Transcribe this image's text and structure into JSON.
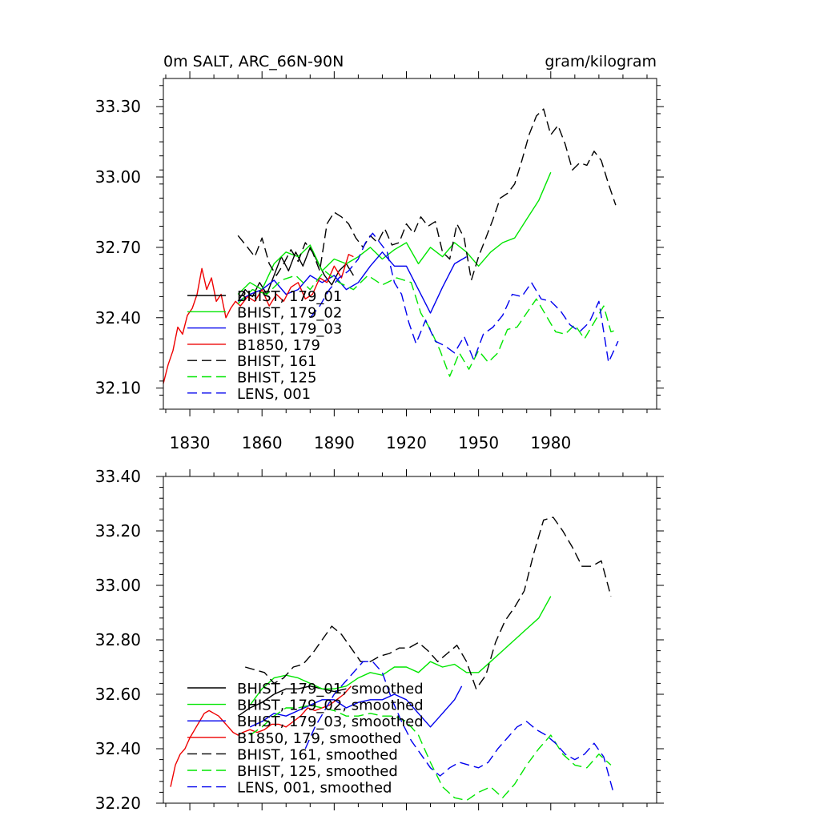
{
  "chart_data": [
    {
      "type": "line",
      "panel": "top",
      "title": "0m SALT, ARC_66N-90N",
      "units": "gram/kilogram",
      "xlim": [
        1819,
        2024
      ],
      "ylim": [
        32.01,
        33.42
      ],
      "x_ticks": [
        1830,
        1860,
        1890,
        1920,
        1950,
        1980
      ],
      "x_tick_labels": [
        "1830",
        "1860",
        "1890",
        "1920",
        "1950",
        "1980"
      ],
      "y_ticks": [
        32.1,
        32.4,
        32.7,
        33.0,
        33.3
      ],
      "y_tick_labels": [
        "32.10",
        "32.40",
        "32.70",
        "33.00",
        "33.30"
      ],
      "legend_position": "lower-left",
      "series": [
        {
          "name": "BHIST, 179_01",
          "color": "#000000",
          "dash": "solid",
          "x": [
            1850,
            1853,
            1856,
            1859,
            1862,
            1865,
            1868,
            1871,
            1874,
            1877,
            1880,
            1883,
            1886,
            1889,
            1892,
            1895,
            1898
          ],
          "y": [
            32.47,
            32.52,
            32.49,
            32.55,
            32.5,
            32.58,
            32.66,
            32.6,
            32.68,
            32.62,
            32.7,
            32.64,
            32.58,
            32.54,
            32.6,
            32.63,
            32.58
          ]
        },
        {
          "name": "BHIST, 179_02",
          "color": "#00e600",
          "dash": "solid",
          "x": [
            1850,
            1855,
            1860,
            1865,
            1870,
            1875,
            1880,
            1885,
            1890,
            1895,
            1900,
            1905,
            1910,
            1915,
            1920,
            1925,
            1930,
            1935,
            1940,
            1945,
            1950,
            1955,
            1960,
            1965,
            1970,
            1975,
            1980
          ],
          "y": [
            32.5,
            32.55,
            32.52,
            32.63,
            32.68,
            32.66,
            32.71,
            32.6,
            32.65,
            32.63,
            32.66,
            32.7,
            32.65,
            32.69,
            32.72,
            32.63,
            32.7,
            32.66,
            32.72,
            32.68,
            32.62,
            32.68,
            32.72,
            32.74,
            32.82,
            32.9,
            33.02
          ]
        },
        {
          "name": "BHIST, 179_03",
          "color": "#0000ee",
          "dash": "solid",
          "x": [
            1850,
            1855,
            1860,
            1865,
            1870,
            1875,
            1880,
            1885,
            1890,
            1895,
            1900,
            1905,
            1910,
            1915,
            1920,
            1925,
            1930,
            1935,
            1940,
            1945
          ],
          "y": [
            32.47,
            32.5,
            32.52,
            32.56,
            32.5,
            32.52,
            32.58,
            32.55,
            32.58,
            32.52,
            32.55,
            32.62,
            32.68,
            32.62,
            32.62,
            32.52,
            32.42,
            32.53,
            32.63,
            32.66
          ]
        },
        {
          "name": "B1850, 179",
          "color": "#ee0000",
          "dash": "solid",
          "x": [
            1819,
            1821,
            1823,
            1825,
            1827,
            1829,
            1831,
            1833,
            1835,
            1837,
            1839,
            1841,
            1843,
            1845,
            1847,
            1849,
            1851,
            1854,
            1857,
            1860,
            1863,
            1866,
            1869,
            1872,
            1875,
            1878,
            1881,
            1884,
            1887,
            1890,
            1893,
            1896,
            1898
          ],
          "y": [
            32.12,
            32.2,
            32.26,
            32.36,
            32.33,
            32.41,
            32.44,
            32.5,
            32.61,
            32.52,
            32.57,
            32.47,
            32.5,
            32.4,
            32.44,
            32.47,
            32.45,
            32.49,
            32.47,
            32.52,
            32.45,
            32.5,
            32.47,
            32.53,
            32.55,
            32.48,
            32.5,
            32.57,
            32.55,
            32.62,
            32.57,
            32.67,
            32.66
          ]
        },
        {
          "name": "BHIST, 161",
          "color": "#000000",
          "dash": "dashed",
          "x": [
            1850,
            1854,
            1857,
            1860,
            1863,
            1866,
            1869,
            1872,
            1875,
            1878,
            1881,
            1884,
            1887,
            1890,
            1893,
            1896,
            1899,
            1902,
            1905,
            1908,
            1911,
            1914,
            1917,
            1920,
            1923,
            1926,
            1929,
            1932,
            1935,
            1938,
            1941,
            1944,
            1947,
            1950,
            1953,
            1956,
            1959,
            1962,
            1965,
            1968,
            1971,
            1974,
            1977,
            1980,
            1983,
            1986,
            1989,
            1992,
            1995,
            1998,
            2001,
            2004,
            2007
          ],
          "y": [
            32.75,
            32.7,
            32.66,
            32.74,
            32.63,
            32.58,
            32.63,
            32.69,
            32.64,
            32.72,
            32.68,
            32.6,
            32.8,
            32.85,
            32.83,
            32.8,
            32.74,
            32.7,
            32.75,
            32.72,
            32.78,
            32.71,
            32.72,
            32.8,
            32.76,
            32.83,
            32.79,
            32.81,
            32.68,
            32.65,
            32.8,
            32.74,
            32.56,
            32.66,
            32.74,
            32.82,
            32.91,
            32.93,
            32.97,
            33.07,
            33.18,
            33.26,
            33.29,
            33.18,
            33.22,
            33.14,
            33.03,
            33.06,
            33.05,
            33.11,
            33.07,
            32.97,
            32.88
          ]
        },
        {
          "name": "BHIST, 125",
          "color": "#00e600",
          "dash": "dashed",
          "x": [
            1850,
            1856,
            1862,
            1868,
            1874,
            1880,
            1886,
            1892,
            1898,
            1904,
            1910,
            1916,
            1922,
            1926,
            1930,
            1934,
            1938,
            1942,
            1946,
            1950,
            1954,
            1958,
            1962,
            1966,
            1970,
            1974,
            1978,
            1982,
            1986,
            1990,
            1994,
            1998,
            2002,
            2005,
            2008
          ],
          "y": [
            32.46,
            32.52,
            32.5,
            32.56,
            32.58,
            32.52,
            32.6,
            32.55,
            32.52,
            32.58,
            32.54,
            32.57,
            32.55,
            32.42,
            32.35,
            32.26,
            32.15,
            32.25,
            32.18,
            32.26,
            32.21,
            32.25,
            32.35,
            32.36,
            32.42,
            32.48,
            32.41,
            32.34,
            32.33,
            32.37,
            32.31,
            32.38,
            32.45,
            32.34,
            32.35
          ]
        },
        {
          "name": "LENS, 001",
          "color": "#0000ee",
          "dash": "dashed",
          "x": [
            1880,
            1884,
            1888,
            1892,
            1896,
            1900,
            1903,
            1906,
            1909,
            1912,
            1915,
            1918,
            1921,
            1924,
            1928,
            1932,
            1936,
            1940,
            1944,
            1948,
            1952,
            1956,
            1960,
            1964,
            1968,
            1972,
            1976,
            1980,
            1984,
            1988,
            1992,
            1996,
            2000,
            2004,
            2008
          ],
          "y": [
            32.4,
            32.45,
            32.52,
            32.57,
            32.6,
            32.65,
            32.72,
            32.76,
            32.72,
            32.68,
            32.55,
            32.5,
            32.38,
            32.29,
            32.39,
            32.3,
            32.28,
            32.25,
            32.32,
            32.22,
            32.33,
            32.36,
            32.41,
            32.5,
            32.49,
            32.55,
            32.48,
            32.47,
            32.43,
            32.37,
            32.34,
            32.38,
            32.47,
            32.21,
            32.3
          ]
        }
      ]
    },
    {
      "type": "line",
      "panel": "bottom",
      "title": "",
      "units": "",
      "xlim": [
        1819,
        2024
      ],
      "ylim": [
        32.2,
        33.4
      ],
      "x_ticks": [
        1830,
        1860,
        1890,
        1920,
        1950,
        1980
      ],
      "y_ticks": [
        32.2,
        32.4,
        32.6,
        32.8,
        33.0,
        33.2,
        33.4
      ],
      "y_tick_labels": [
        "32.20",
        "32.40",
        "32.60",
        "32.80",
        "33.00",
        "33.20",
        "33.40"
      ],
      "legend_position": "lower-left",
      "series": [
        {
          "name": "BHIST, 179_01, smoothed",
          "color": "#000000",
          "dash": "solid",
          "x": [
            1850,
            1855,
            1860,
            1865,
            1870,
            1875,
            1880,
            1885,
            1890,
            1895
          ],
          "y": [
            32.52,
            32.55,
            32.57,
            32.6,
            32.62,
            32.62,
            32.63,
            32.62,
            32.61,
            32.62
          ]
        },
        {
          "name": "BHIST, 179_02, smoothed",
          "color": "#00e600",
          "dash": "solid",
          "x": [
            1855,
            1860,
            1865,
            1870,
            1875,
            1880,
            1885,
            1890,
            1895,
            1900,
            1905,
            1910,
            1915,
            1920,
            1925,
            1930,
            1935,
            1940,
            1945,
            1950,
            1955,
            1960,
            1965,
            1970,
            1975,
            1980
          ],
          "y": [
            32.56,
            32.62,
            32.66,
            32.67,
            32.66,
            32.64,
            32.62,
            32.62,
            32.63,
            32.66,
            32.68,
            32.67,
            32.7,
            32.7,
            32.68,
            32.72,
            32.7,
            32.71,
            32.68,
            32.68,
            32.72,
            32.76,
            32.8,
            32.84,
            32.88,
            32.96
          ]
        },
        {
          "name": "BHIST, 179_03, smoothed",
          "color": "#0000ee",
          "dash": "solid",
          "x": [
            1855,
            1860,
            1865,
            1870,
            1875,
            1880,
            1885,
            1890,
            1895,
            1900,
            1905,
            1910,
            1915,
            1920,
            1925,
            1930,
            1935,
            1940,
            1943
          ],
          "y": [
            32.48,
            32.5,
            32.53,
            32.52,
            32.54,
            32.56,
            32.58,
            32.58,
            32.55,
            32.57,
            32.58,
            32.58,
            32.6,
            32.58,
            32.53,
            32.48,
            32.53,
            32.58,
            32.63
          ]
        },
        {
          "name": "B1850, 179, smoothed",
          "color": "#ee0000",
          "dash": "solid",
          "x": [
            1822,
            1824,
            1826,
            1828,
            1830,
            1832,
            1834,
            1836,
            1838,
            1840,
            1842,
            1844,
            1846,
            1848,
            1850,
            1852,
            1855,
            1858,
            1861,
            1864,
            1867,
            1870,
            1873,
            1876,
            1879,
            1882,
            1885,
            1888,
            1891,
            1894,
            1897
          ],
          "y": [
            32.26,
            32.34,
            32.38,
            32.4,
            32.44,
            32.47,
            32.5,
            32.53,
            32.54,
            32.53,
            32.52,
            32.5,
            32.48,
            32.46,
            32.45,
            32.46,
            32.47,
            32.46,
            32.47,
            32.49,
            32.49,
            32.48,
            32.5,
            32.52,
            32.55,
            32.54,
            32.55,
            32.56,
            32.58,
            32.6,
            32.63
          ]
        },
        {
          "name": "BHIST, 161, smoothed",
          "color": "#000000",
          "dash": "dashed",
          "x": [
            1853,
            1857,
            1861,
            1865,
            1869,
            1873,
            1877,
            1881,
            1885,
            1889,
            1893,
            1897,
            1901,
            1905,
            1909,
            1913,
            1917,
            1921,
            1925,
            1929,
            1933,
            1937,
            1941,
            1945,
            1949,
            1953,
            1957,
            1961,
            1965,
            1969,
            1973,
            1977,
            1981,
            1985,
            1989,
            1993,
            1997,
            2001,
            2005
          ],
          "y": [
            32.7,
            32.69,
            32.68,
            32.64,
            32.66,
            32.7,
            32.71,
            32.75,
            32.8,
            32.85,
            32.82,
            32.77,
            32.72,
            32.72,
            32.74,
            32.75,
            32.77,
            32.77,
            32.79,
            32.76,
            32.72,
            32.75,
            32.78,
            32.72,
            32.62,
            32.67,
            32.79,
            32.87,
            32.92,
            32.98,
            33.12,
            33.24,
            33.25,
            33.2,
            33.14,
            33.07,
            33.07,
            33.09,
            32.96
          ]
        },
        {
          "name": "BHIST, 125, smoothed",
          "color": "#00e600",
          "dash": "dashed",
          "x": [
            1855,
            1860,
            1865,
            1870,
            1875,
            1880,
            1885,
            1890,
            1895,
            1900,
            1905,
            1910,
            1915,
            1920,
            1925,
            1930,
            1935,
            1940,
            1945,
            1950,
            1955,
            1960,
            1965,
            1970,
            1975,
            1980,
            1985,
            1990,
            1995,
            2000,
            2005
          ],
          "y": [
            32.45,
            32.48,
            32.52,
            32.55,
            32.55,
            32.56,
            32.55,
            32.54,
            32.52,
            32.52,
            32.53,
            32.52,
            32.52,
            32.5,
            32.45,
            32.35,
            32.26,
            32.22,
            32.21,
            32.24,
            32.26,
            32.22,
            32.27,
            32.34,
            32.4,
            32.45,
            32.38,
            32.34,
            32.33,
            32.38,
            32.34
          ]
        },
        {
          "name": "LENS, 001, smoothed",
          "color": "#0000ee",
          "dash": "dashed",
          "x": [
            1878,
            1882,
            1886,
            1890,
            1894,
            1898,
            1902,
            1906,
            1910,
            1914,
            1918,
            1922,
            1926,
            1930,
            1934,
            1938,
            1942,
            1946,
            1950,
            1954,
            1958,
            1962,
            1966,
            1970,
            1974,
            1978,
            1982,
            1986,
            1990,
            1994,
            1998,
            2002,
            2006
          ],
          "y": [
            32.4,
            32.48,
            32.54,
            32.6,
            32.64,
            32.68,
            32.72,
            32.72,
            32.68,
            32.58,
            32.5,
            32.43,
            32.38,
            32.33,
            32.3,
            32.33,
            32.35,
            32.34,
            32.33,
            32.35,
            32.4,
            32.44,
            32.48,
            32.5,
            32.47,
            32.45,
            32.42,
            32.38,
            32.36,
            32.38,
            32.42,
            32.37,
            32.24
          ]
        }
      ]
    }
  ]
}
